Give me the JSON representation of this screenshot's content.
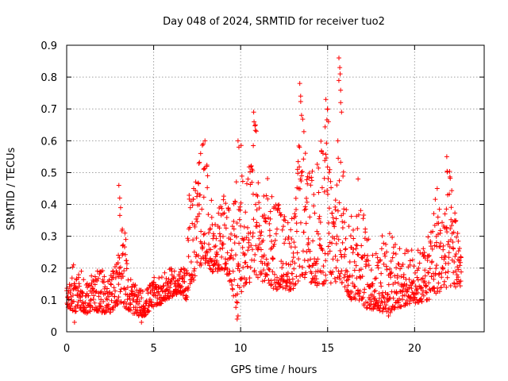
{
  "chart_data": {
    "type": "scatter",
    "title": "Day 048 of 2024, SRMTID for receiver tuo2",
    "xlabel": "GPS time / hours",
    "ylabel": "SRMTID / TECUs",
    "xlim": [
      0,
      24
    ],
    "ylim": [
      0,
      0.9
    ],
    "xticks": [
      0,
      5,
      10,
      15,
      20
    ],
    "xtick_labels": [
      "0",
      "5",
      "10",
      "15",
      "20"
    ],
    "yticks": [
      0,
      0.1,
      0.2,
      0.3,
      0.4,
      0.5,
      0.6,
      0.7,
      0.8,
      0.9
    ],
    "ytick_labels": [
      "0",
      "0.1",
      "0.2",
      "0.3",
      "0.4",
      "0.5",
      "0.6",
      "0.7",
      "0.8",
      "0.9"
    ],
    "grid": true,
    "marker": "plus",
    "series": [
      {
        "name": "SRMTID",
        "color": "#ff0000",
        "envelope": [
          [
            0.0,
            0.08,
            0.18
          ],
          [
            0.5,
            0.06,
            0.22
          ],
          [
            0.7,
            0.08,
            0.25
          ],
          [
            1.0,
            0.05,
            0.17
          ],
          [
            1.5,
            0.07,
            0.18
          ],
          [
            2.0,
            0.06,
            0.2
          ],
          [
            2.5,
            0.06,
            0.17
          ],
          [
            2.9,
            0.08,
            0.24
          ],
          [
            3.0,
            0.1,
            0.46
          ],
          [
            3.3,
            0.08,
            0.3
          ],
          [
            3.5,
            0.07,
            0.2
          ],
          [
            4.0,
            0.05,
            0.14
          ],
          [
            4.5,
            0.05,
            0.13
          ],
          [
            5.0,
            0.08,
            0.17
          ],
          [
            5.5,
            0.09,
            0.18
          ],
          [
            6.0,
            0.11,
            0.2
          ],
          [
            6.5,
            0.12,
            0.2
          ],
          [
            6.9,
            0.1,
            0.2
          ],
          [
            7.0,
            0.14,
            0.47
          ],
          [
            7.3,
            0.16,
            0.45
          ],
          [
            7.6,
            0.2,
            0.58
          ],
          [
            7.9,
            0.22,
            0.6
          ],
          [
            8.2,
            0.2,
            0.46
          ],
          [
            8.5,
            0.18,
            0.36
          ],
          [
            9.0,
            0.2,
            0.43
          ],
          [
            9.5,
            0.14,
            0.38
          ],
          [
            9.8,
            0.04,
            0.5
          ],
          [
            10.0,
            0.12,
            0.6
          ],
          [
            10.3,
            0.15,
            0.5
          ],
          [
            10.6,
            0.15,
            0.55
          ],
          [
            10.8,
            0.18,
            0.69
          ],
          [
            11.2,
            0.16,
            0.4
          ],
          [
            11.6,
            0.15,
            0.5
          ],
          [
            12.0,
            0.13,
            0.45
          ],
          [
            12.3,
            0.14,
            0.39
          ],
          [
            12.8,
            0.13,
            0.35
          ],
          [
            13.2,
            0.14,
            0.44
          ],
          [
            13.5,
            0.18,
            0.78
          ],
          [
            13.8,
            0.16,
            0.5
          ],
          [
            14.2,
            0.15,
            0.52
          ],
          [
            14.6,
            0.14,
            0.6
          ],
          [
            15.0,
            0.16,
            0.73
          ],
          [
            15.3,
            0.14,
            0.42
          ],
          [
            15.7,
            0.15,
            0.86
          ],
          [
            16.0,
            0.14,
            0.43
          ],
          [
            16.3,
            0.1,
            0.35
          ],
          [
            16.8,
            0.1,
            0.48
          ],
          [
            17.3,
            0.07,
            0.3
          ],
          [
            17.8,
            0.07,
            0.25
          ],
          [
            18.3,
            0.06,
            0.35
          ],
          [
            18.8,
            0.07,
            0.3
          ],
          [
            19.3,
            0.08,
            0.25
          ],
          [
            19.8,
            0.09,
            0.27
          ],
          [
            20.3,
            0.09,
            0.26
          ],
          [
            20.8,
            0.1,
            0.3
          ],
          [
            21.2,
            0.12,
            0.45
          ],
          [
            21.6,
            0.13,
            0.38
          ],
          [
            21.9,
            0.14,
            0.55
          ],
          [
            22.3,
            0.14,
            0.42
          ],
          [
            22.7,
            0.14,
            0.3
          ]
        ],
        "spikes": [
          [
            3.0,
            0.46
          ],
          [
            3.05,
            0.42
          ],
          [
            3.1,
            0.39
          ],
          [
            3.35,
            0.31
          ],
          [
            3.4,
            0.29
          ],
          [
            7.3,
            0.45
          ],
          [
            7.7,
            0.56
          ],
          [
            7.85,
            0.59
          ],
          [
            7.95,
            0.6
          ],
          [
            9.85,
            0.6
          ],
          [
            9.9,
            0.58
          ],
          [
            10.75,
            0.69
          ],
          [
            10.85,
            0.65
          ],
          [
            10.9,
            0.63
          ],
          [
            13.4,
            0.78
          ],
          [
            13.45,
            0.74
          ],
          [
            13.5,
            0.68
          ],
          [
            14.9,
            0.73
          ],
          [
            15.0,
            0.7
          ],
          [
            15.05,
            0.66
          ],
          [
            15.65,
            0.86
          ],
          [
            15.7,
            0.83
          ],
          [
            15.72,
            0.81
          ],
          [
            15.75,
            0.72
          ],
          [
            15.8,
            0.69
          ],
          [
            16.75,
            0.48
          ],
          [
            21.3,
            0.45
          ],
          [
            21.85,
            0.55
          ],
          [
            21.9,
            0.43
          ],
          [
            9.8,
            0.04
          ],
          [
            9.85,
            0.05
          ],
          [
            0.45,
            0.03
          ],
          [
            4.3,
            0.03
          ],
          [
            18.5,
            0.05
          ],
          [
            18.6,
            0.06
          ]
        ]
      }
    ]
  }
}
